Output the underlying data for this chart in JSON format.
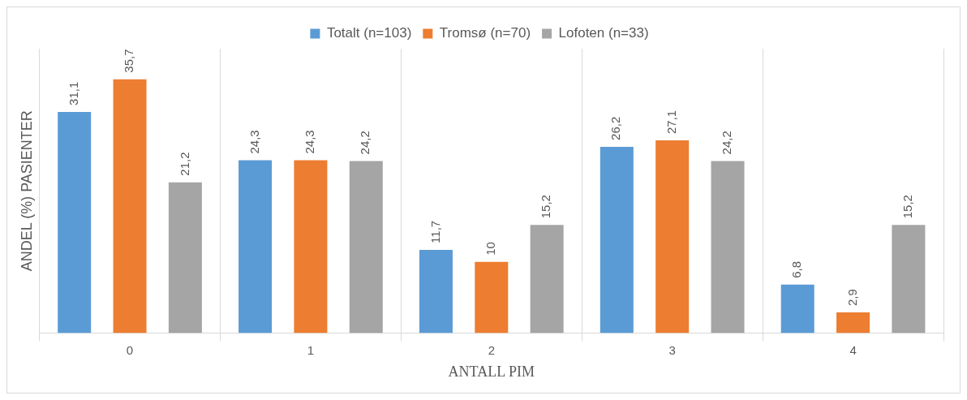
{
  "chart_data": {
    "type": "bar",
    "xlabel": "ANTALL PIM",
    "ylabel": "ANDEL (%) PASIENTER",
    "categories": [
      "0",
      "1",
      "2",
      "3",
      "4"
    ],
    "series": [
      {
        "name": "Totalt (n=103)",
        "color": "#5b9bd5",
        "values": [
          31.1,
          24.3,
          11.7,
          26.2,
          6.8
        ],
        "value_labels": [
          "31,1",
          "24,3",
          "11,7",
          "26,2",
          "6,8"
        ]
      },
      {
        "name": "Tromsø (n=70)",
        "color": "#ed7d31",
        "values": [
          35.7,
          24.3,
          10,
          27.1,
          2.9
        ],
        "value_labels": [
          "35,7",
          "24,3",
          "10",
          "27,1",
          "2,9"
        ]
      },
      {
        "name": "Lofoten (n=33)",
        "color": "#a5a5a5",
        "values": [
          21.2,
          24.2,
          15.2,
          24.2,
          15.2
        ],
        "value_labels": [
          "21,2",
          "24,2",
          "15,2",
          "24,2",
          "15,2"
        ]
      }
    ],
    "grid": "x",
    "legend": "top",
    "tick_labels": "x"
  }
}
